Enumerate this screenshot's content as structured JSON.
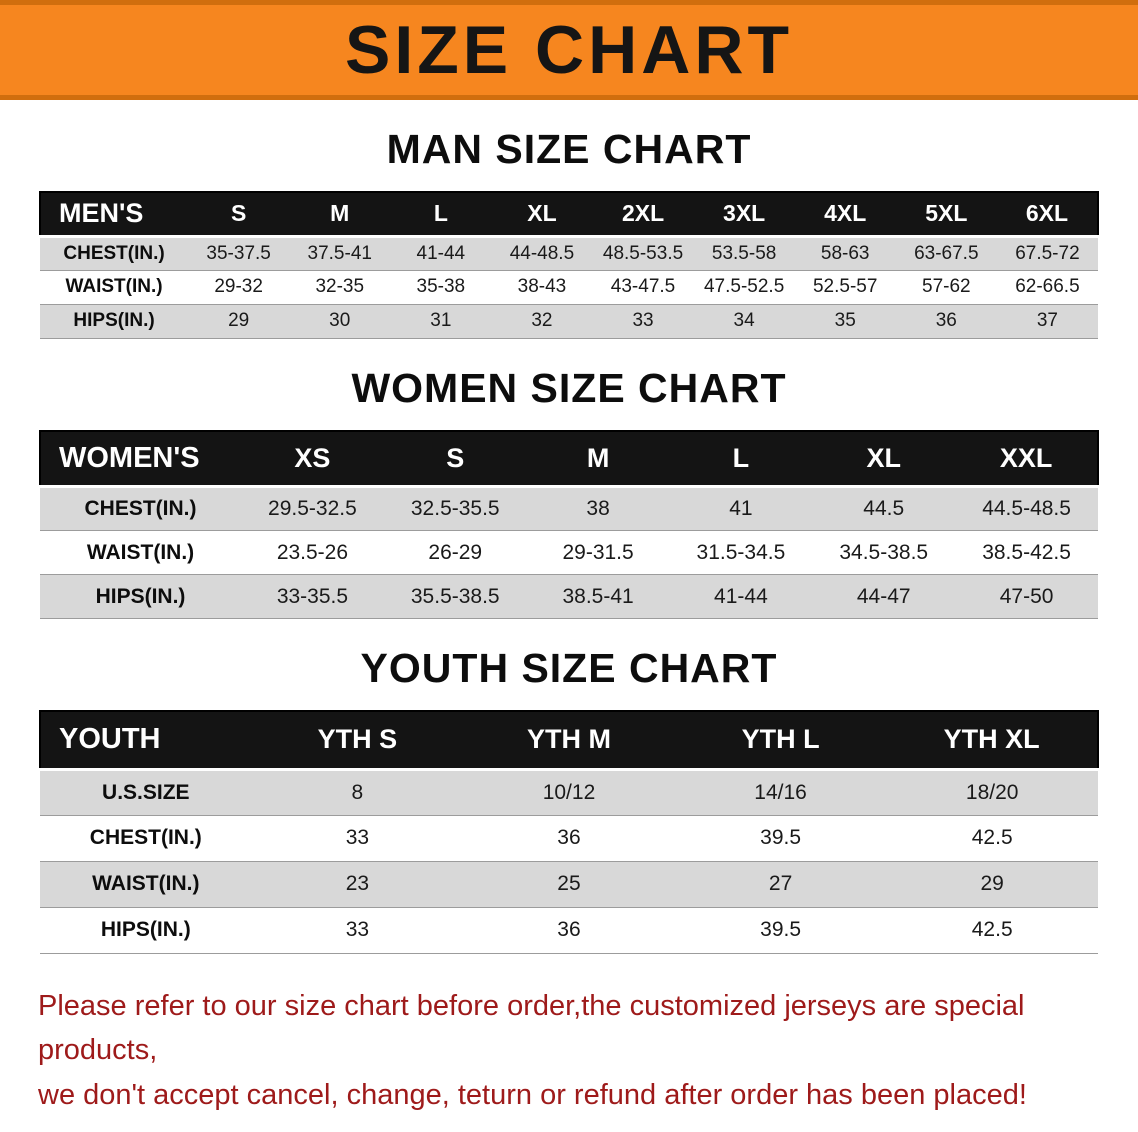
{
  "colors": {
    "banner_bg": "#F6861F",
    "banner_text": "#151515",
    "table_header_bg": "#141414",
    "table_header_text": "#FFFFFF",
    "row_stripe": "#D8D8D8",
    "footer_text": "#9E1A1A"
  },
  "banner": {
    "title": "SIZE CHART"
  },
  "sections": [
    {
      "id": "men",
      "heading": "MAN SIZE CHART",
      "table": {
        "title": "MEN'S",
        "columns": [
          "S",
          "M",
          "L",
          "XL",
          "2XL",
          "3XL",
          "4XL",
          "5XL",
          "6XL"
        ],
        "rows": [
          {
            "label": "CHEST(IN.)",
            "values": [
              "35-37.5",
              "37.5-41",
              "41-44",
              "44-48.5",
              "48.5-53.5",
              "53.5-58",
              "58-63",
              "63-67.5",
              "67.5-72"
            ]
          },
          {
            "label": "WAIST(IN.)",
            "values": [
              "29-32",
              "32-35",
              "35-38",
              "38-43",
              "43-47.5",
              "47.5-52.5",
              "52.5-57",
              "57-62",
              "62-66.5"
            ]
          },
          {
            "label": "HIPS(IN.)",
            "values": [
              "29",
              "30",
              "31",
              "32",
              "33",
              "34",
              "35",
              "36",
              "37"
            ]
          }
        ]
      }
    },
    {
      "id": "women",
      "heading": "WOMEN SIZE CHART",
      "table": {
        "title": "WOMEN'S",
        "columns": [
          "XS",
          "S",
          "M",
          "L",
          "XL",
          "XXL"
        ],
        "rows": [
          {
            "label": "CHEST(IN.)",
            "values": [
              "29.5-32.5",
              "32.5-35.5",
              "38",
              "41",
              "44.5",
              "44.5-48.5"
            ]
          },
          {
            "label": "WAIST(IN.)",
            "values": [
              "23.5-26",
              "26-29",
              "29-31.5",
              "31.5-34.5",
              "34.5-38.5",
              "38.5-42.5"
            ]
          },
          {
            "label": "HIPS(IN.)",
            "values": [
              "33-35.5",
              "35.5-38.5",
              "38.5-41",
              "41-44",
              "44-47",
              "47-50"
            ]
          }
        ]
      }
    },
    {
      "id": "youth",
      "heading": "YOUTH SIZE CHART",
      "table": {
        "title": "YOUTH",
        "columns": [
          "YTH S",
          "YTH M",
          "YTH L",
          "YTH XL"
        ],
        "rows": [
          {
            "label": "U.S.SIZE",
            "values": [
              "8",
              "10/12",
              "14/16",
              "18/20"
            ]
          },
          {
            "label": "CHEST(IN.)",
            "values": [
              "33",
              "36",
              "39.5",
              "42.5"
            ]
          },
          {
            "label": "WAIST(IN.)",
            "values": [
              "23",
              "25",
              "27",
              "29"
            ]
          },
          {
            "label": "HIPS(IN.)",
            "values": [
              "33",
              "36",
              "39.5",
              "42.5"
            ]
          }
        ]
      }
    }
  ],
  "footer": {
    "line1": "Please refer to our size chart before order,the customized jerseys are special products,",
    "line2": "we don't accept cancel, change, teturn or refund after order has been placed!"
  }
}
